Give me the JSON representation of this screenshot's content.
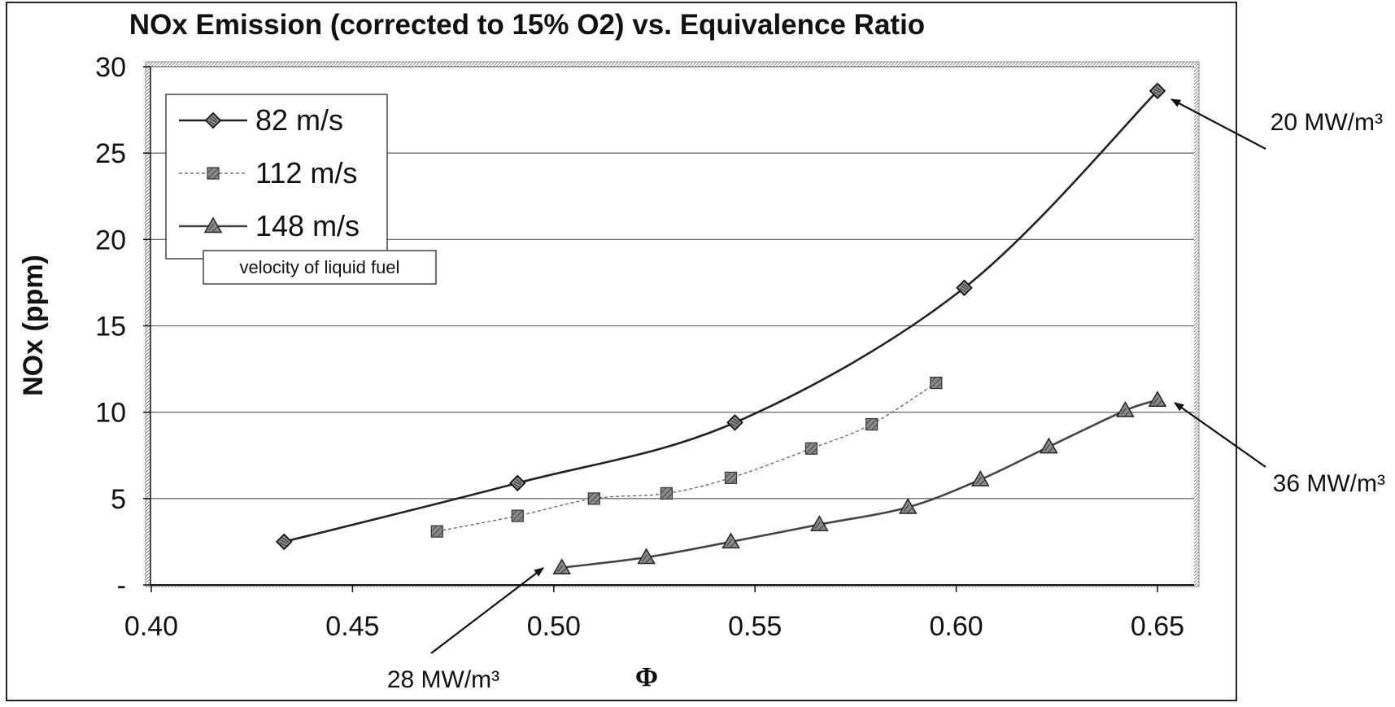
{
  "chart_data": {
    "type": "line",
    "title": "NOx Emission (corrected to 15% O2) vs. Equivalence Ratio",
    "xlabel": "Φ",
    "ylabel": "NOx (ppm)",
    "xlim": [
      0.4,
      0.662
    ],
    "ylim": [
      0,
      30
    ],
    "x_ticks": [
      0.4,
      0.45,
      0.5,
      0.55,
      0.6,
      0.65
    ],
    "x_tick_labels": [
      "0.40",
      "0.45",
      "0.50",
      "0.55",
      "0.60",
      "0.65"
    ],
    "y_ticks": [
      0,
      5,
      10,
      15,
      20,
      25,
      30
    ],
    "y_tick_labels": [
      "-",
      "5",
      "10",
      "15",
      "20",
      "25",
      "30"
    ],
    "grid": "horizontal",
    "legend": {
      "placement": "top-left",
      "title": "velocity of liquid fuel"
    },
    "series": [
      {
        "name": "82 m/s",
        "marker": "diamond",
        "line_style": "solid",
        "color": "#222222",
        "x": [
          0.433,
          0.491,
          0.545,
          0.602,
          0.65
        ],
        "values": [
          2.5,
          5.9,
          9.4,
          17.2,
          28.6
        ]
      },
      {
        "name": "112 m/s",
        "marker": "square",
        "line_style": "dotted",
        "color": "#555555",
        "x": [
          0.471,
          0.491,
          0.51,
          0.528,
          0.544,
          0.564,
          0.579,
          0.595
        ],
        "values": [
          3.1,
          4.0,
          5.0,
          5.3,
          6.2,
          7.9,
          9.3,
          11.7
        ]
      },
      {
        "name": "148 m/s",
        "marker": "triangle",
        "line_style": "solid",
        "color": "#444444",
        "x": [
          0.502,
          0.523,
          0.544,
          0.566,
          0.588,
          0.606,
          0.623,
          0.642,
          0.65
        ],
        "values": [
          1.0,
          1.6,
          2.5,
          3.5,
          4.5,
          6.1,
          8.0,
          10.1,
          10.7
        ]
      }
    ],
    "annotations": [
      {
        "text": "20 MW/m³",
        "target": [
          0.65,
          28.6
        ]
      },
      {
        "text": "36 MW/m³",
        "target": [
          0.65,
          10.7
        ]
      },
      {
        "text": "28 MW/m³",
        "target": [
          0.502,
          1.0
        ]
      }
    ]
  }
}
